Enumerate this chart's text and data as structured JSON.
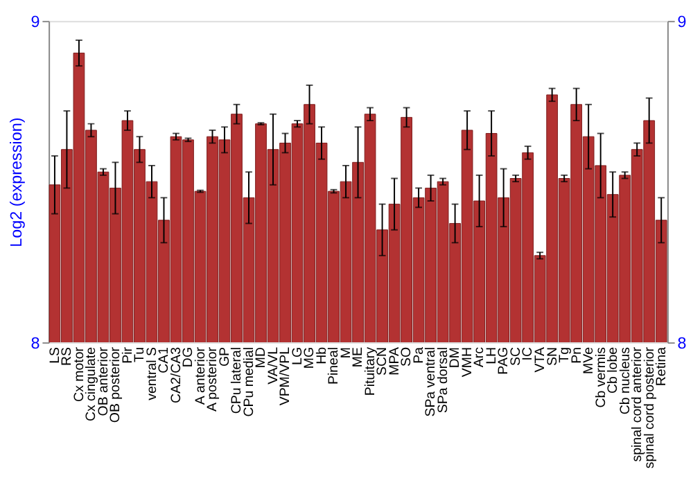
{
  "chart_data": {
    "type": "bar",
    "ylabel": "Log2 (expression)",
    "categories": [
      "LS",
      "RS",
      "Cx motor",
      "Cx cingulate",
      "OB anterior",
      "OB posterior",
      "Pir",
      "Tu",
      "ventral S",
      "CA1",
      "CA2/CA3",
      "DG",
      "A anterior",
      "A posterior",
      "GP",
      "CPu lateral",
      "CPu medial",
      "MD",
      "VA/VL",
      "VPM/VPL",
      "LG",
      "MG",
      "Hb",
      "Pineal",
      "M",
      "ME",
      "Pituitary",
      "SCN",
      "MPA",
      "SO",
      "Pa",
      "SPa ventral",
      "SPa dorsal",
      "DM",
      "VMH",
      "Arc",
      "LH",
      "PAG",
      "SC",
      "IC",
      "VTA",
      "SN",
      "Tg",
      "Pn",
      "MVe",
      "Cb vermis",
      "Cb lobe",
      "Cb nucleus",
      "spinal cord anterior",
      "spinal cord posterior",
      "Retina"
    ],
    "values": [
      8.49,
      8.6,
      8.9,
      8.66,
      8.53,
      8.48,
      8.69,
      8.6,
      8.5,
      8.38,
      8.64,
      8.63,
      8.47,
      8.64,
      8.63,
      8.71,
      8.45,
      8.68,
      8.6,
      8.62,
      8.68,
      8.74,
      8.62,
      8.47,
      8.5,
      8.56,
      8.71,
      8.35,
      8.43,
      8.7,
      8.45,
      8.48,
      8.5,
      8.37,
      8.66,
      8.44,
      8.65,
      8.45,
      8.51,
      8.59,
      8.27,
      8.77,
      8.51,
      8.74,
      8.64,
      8.55,
      8.46,
      8.52,
      8.6,
      8.69,
      8.38
    ],
    "errors": [
      0.09,
      0.12,
      0.04,
      0.02,
      0.01,
      0.08,
      0.03,
      0.04,
      0.05,
      0.07,
      0.01,
      0.005,
      0.003,
      0.02,
      0.04,
      0.03,
      0.08,
      0.003,
      0.11,
      0.03,
      0.01,
      0.06,
      0.05,
      0.005,
      0.05,
      0.11,
      0.02,
      0.08,
      0.08,
      0.03,
      0.03,
      0.04,
      0.01,
      0.06,
      0.06,
      0.08,
      0.07,
      0.09,
      0.01,
      0.02,
      0.01,
      0.02,
      0.01,
      0.05,
      0.1,
      0.1,
      0.07,
      0.01,
      0.02,
      0.07,
      0.07
    ],
    "color": "#b33232",
    "ylim": [
      8,
      9
    ],
    "yticks": [
      8,
      9
    ],
    "y2lim": [
      8,
      9
    ],
    "y2ticks": [
      8,
      9
    ],
    "grid": false
  }
}
